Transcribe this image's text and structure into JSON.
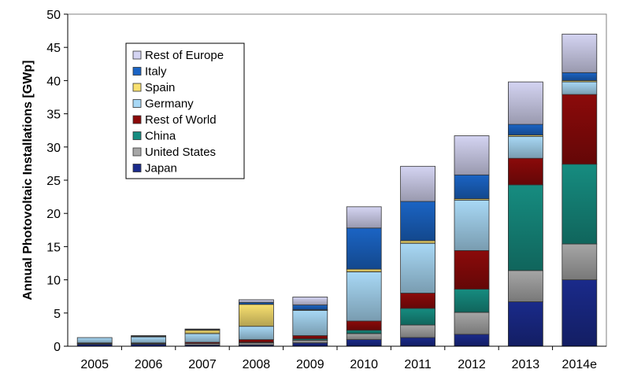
{
  "chart_data": {
    "type": "bar",
    "stacked": true,
    "title": "",
    "xlabel": "",
    "ylabel": "Annual Photovoltaic Installations [GWp]",
    "ylim": [
      0,
      50
    ],
    "yticks": [
      0,
      5,
      10,
      15,
      20,
      25,
      30,
      35,
      40,
      45,
      50
    ],
    "grid": false,
    "legend_position": "top-left",
    "categories": [
      "2005",
      "2006",
      "2007",
      "2008",
      "2009",
      "2010",
      "2011",
      "2012",
      "2013",
      "2014e"
    ],
    "series": [
      {
        "name": "Japan",
        "color": "#1a2a8a",
        "values": [
          0.3,
          0.3,
          0.2,
          0.2,
          0.5,
          1.0,
          1.3,
          1.8,
          6.7,
          10.0
        ]
      },
      {
        "name": "United States",
        "color": "#a6a6a6",
        "values": [
          0.1,
          0.1,
          0.2,
          0.3,
          0.4,
          0.9,
          1.9,
          3.3,
          4.7,
          5.4
        ]
      },
      {
        "name": "China",
        "color": "#168c80",
        "values": [
          0.0,
          0.0,
          0.0,
          0.1,
          0.2,
          0.5,
          2.5,
          3.5,
          12.9,
          12.0
        ]
      },
      {
        "name": "Rest of World",
        "color": "#8b0a0a",
        "values": [
          0.1,
          0.1,
          0.2,
          0.4,
          0.5,
          1.4,
          2.3,
          5.8,
          4.0,
          10.5
        ]
      },
      {
        "name": "Germany",
        "color": "#a8d8f5",
        "values": [
          0.8,
          0.9,
          1.3,
          2.0,
          3.8,
          7.4,
          7.5,
          7.6,
          3.3,
          1.9
        ]
      },
      {
        "name": "Spain",
        "color": "#f8e070",
        "values": [
          0.0,
          0.1,
          0.5,
          3.3,
          0.1,
          0.4,
          0.4,
          0.2,
          0.2,
          0.2
        ]
      },
      {
        "name": "Italy",
        "color": "#1b64c4",
        "values": [
          0.0,
          0.0,
          0.1,
          0.3,
          0.7,
          6.2,
          5.9,
          3.6,
          1.6,
          1.2
        ]
      },
      {
        "name": "Rest of Europe",
        "color": "#d4d4f2",
        "values": [
          0.0,
          0.1,
          0.1,
          0.4,
          1.2,
          3.2,
          5.3,
          5.9,
          6.4,
          5.8
        ]
      }
    ],
    "legend_order": [
      "Rest of Europe",
      "Italy",
      "Spain",
      "Germany",
      "Rest of World",
      "China",
      "United States",
      "Japan"
    ]
  }
}
